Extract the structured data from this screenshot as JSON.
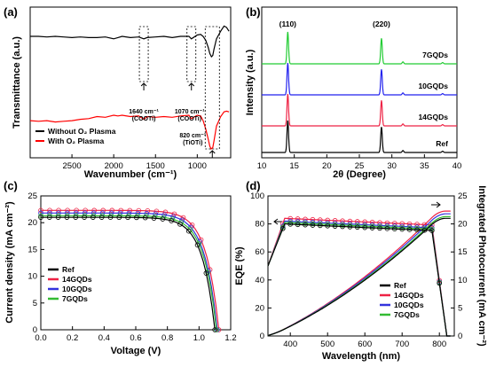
{
  "chart_data": [
    {
      "panel": "(a)",
      "type": "line",
      "xlabel": "Wavenumber (cm⁻¹)",
      "ylabel": "Transmittance (a.u.)",
      "xlim": [
        3000,
        600
      ],
      "x_ticks": [
        2500,
        2000,
        1500,
        1000
      ],
      "y_ticks": [],
      "legend_position": "bottom-left",
      "series": [
        {
          "name": "Without O₂ Plasma",
          "color": "#000000",
          "points": [
            [
              3000,
              0.82
            ],
            [
              2900,
              0.82
            ],
            [
              2800,
              0.81
            ],
            [
              2700,
              0.82
            ],
            [
              2600,
              0.81
            ],
            [
              2500,
              0.8
            ],
            [
              2400,
              0.81
            ],
            [
              2300,
              0.8
            ],
            [
              2200,
              0.8
            ],
            [
              2100,
              0.81
            ],
            [
              2000,
              0.78
            ],
            [
              1950,
              0.8
            ],
            [
              1900,
              0.82
            ],
            [
              1800,
              0.8
            ],
            [
              1700,
              0.81
            ],
            [
              1640,
              0.78
            ],
            [
              1600,
              0.8
            ],
            [
              1500,
              0.81
            ],
            [
              1400,
              0.82
            ],
            [
              1300,
              0.8
            ],
            [
              1200,
              0.82
            ],
            [
              1100,
              0.82
            ],
            [
              1070,
              0.78
            ],
            [
              1000,
              0.84
            ],
            [
              960,
              0.85
            ],
            [
              930,
              0.82
            ],
            [
              900,
              0.76
            ],
            [
              870,
              0.65
            ],
            [
              850,
              0.55
            ],
            [
              830,
              0.5
            ],
            [
              815,
              0.52
            ],
            [
              800,
              0.62
            ],
            [
              770,
              0.78
            ],
            [
              720,
              0.9
            ],
            [
              680,
              0.98
            ],
            [
              650,
              0.96
            ],
            [
              620,
              0.9
            ]
          ]
        },
        {
          "name": "With O₂ Plasma",
          "color": "#ff0000",
          "points": [
            [
              3000,
              0.42
            ],
            [
              2900,
              0.41
            ],
            [
              2800,
              0.42
            ],
            [
              2700,
              0.4
            ],
            [
              2600,
              0.41
            ],
            [
              2500,
              0.42
            ],
            [
              2400,
              0.44
            ],
            [
              2300,
              0.45
            ],
            [
              2200,
              0.48
            ],
            [
              2100,
              0.47
            ],
            [
              2000,
              0.5
            ],
            [
              1950,
              0.49
            ],
            [
              1900,
              0.5
            ],
            [
              1800,
              0.48
            ],
            [
              1700,
              0.49
            ],
            [
              1640,
              0.44
            ],
            [
              1600,
              0.48
            ],
            [
              1500,
              0.47
            ],
            [
              1400,
              0.48
            ],
            [
              1300,
              0.47
            ],
            [
              1200,
              0.49
            ],
            [
              1100,
              0.5
            ],
            [
              1070,
              0.45
            ],
            [
              1000,
              0.5
            ],
            [
              960,
              0.49
            ],
            [
              930,
              0.42
            ],
            [
              900,
              0.3
            ],
            [
              870,
              0.15
            ],
            [
              850,
              0.04
            ],
            [
              835,
              0.0
            ],
            [
              815,
              0.02
            ],
            [
              800,
              0.12
            ],
            [
              770,
              0.34
            ],
            [
              720,
              0.48
            ],
            [
              680,
              0.55
            ],
            [
              650,
              0.56
            ],
            [
              620,
              0.55
            ]
          ]
        }
      ],
      "annotations": [
        {
          "text": "1640 cm⁻¹",
          "sub": "(COOTi)",
          "x": 1640
        },
        {
          "text": "1070 cm⁻¹",
          "sub": "(COOTi)",
          "x": 1070
        },
        {
          "text": "820 cm⁻¹",
          "sub": "(TiOTi)",
          "x": 820
        }
      ]
    },
    {
      "panel": "(b)",
      "type": "line",
      "xlabel": "2θ (Degree)",
      "ylabel": "Intensity (a.u.)",
      "xlim": [
        10,
        40
      ],
      "x_ticks": [
        10,
        15,
        20,
        25,
        30,
        35,
        40
      ],
      "peak_labels": [
        {
          "text": "(110)",
          "x": 14
        },
        {
          "text": "(220)",
          "x": 28.4
        }
      ],
      "series": [
        {
          "name": "7GQDs",
          "color": "#22cc33",
          "peaks": [
            [
              14,
              1.0
            ],
            [
              28.4,
              0.8
            ],
            [
              31.7,
              0.06
            ],
            [
              37.8,
              0.04
            ]
          ]
        },
        {
          "name": "10GQDs",
          "color": "#2222ee",
          "peaks": [
            [
              14,
              1.0
            ],
            [
              28.4,
              0.8
            ],
            [
              31.7,
              0.06
            ],
            [
              37.8,
              0.04
            ]
          ]
        },
        {
          "name": "14GQDs",
          "color": "#ee2244",
          "peaks": [
            [
              14,
              1.0
            ],
            [
              28.4,
              0.8
            ],
            [
              31.7,
              0.06
            ],
            [
              37.8,
              0.04
            ]
          ]
        },
        {
          "name": "Ref",
          "color": "#000000",
          "peaks": [
            [
              14,
              1.0
            ],
            [
              28.4,
              0.8
            ],
            [
              31.7,
              0.06
            ],
            [
              37.8,
              0.04
            ]
          ]
        }
      ]
    },
    {
      "panel": "(c)",
      "type": "line",
      "xlabel": "Voltage (V)",
      "ylabel": "Current density (mA cm⁻²)",
      "xlim": [
        0.0,
        1.2
      ],
      "ylim": [
        0,
        25
      ],
      "x_ticks": [
        0.0,
        0.2,
        0.4,
        0.6,
        0.8,
        1.0,
        1.2
      ],
      "y_ticks": [
        0,
        5,
        10,
        15,
        20,
        25
      ],
      "legend_position": "bottom-left",
      "series": [
        {
          "name": "Ref",
          "color": "#000000",
          "jsc": 21.0,
          "voc": 1.1
        },
        {
          "name": "14GQDs",
          "color": "#ee2244",
          "jsc": 22.3,
          "voc": 1.125
        },
        {
          "name": "10GQDs",
          "color": "#3333dd",
          "jsc": 21.8,
          "voc": 1.115
        },
        {
          "name": "7GQDs",
          "color": "#33bb33",
          "jsc": 21.3,
          "voc": 1.11
        }
      ]
    },
    {
      "panel": "(d)",
      "type": "line",
      "xlabel": "Wavelength (nm)",
      "ylabel": "EQE (%)",
      "ylabel_right": "Integrated Photocurrent (mA cm⁻²)",
      "xlim": [
        340,
        840
      ],
      "ylim": [
        0,
        100
      ],
      "ylim_right": [
        0,
        25
      ],
      "x_ticks": [
        400,
        500,
        600,
        700,
        800
      ],
      "y_ticks": [
        0,
        20,
        40,
        60,
        80,
        100
      ],
      "y_ticks_right": [
        0,
        5,
        10,
        15,
        20,
        25
      ],
      "legend_position": "bottom-right",
      "series": [
        {
          "name": "Ref",
          "color": "#000000",
          "eqe_plateau": 80,
          "jint_end": 21.0
        },
        {
          "name": "14GQDs",
          "color": "#ee2244",
          "eqe_plateau": 84,
          "jint_end": 22.3
        },
        {
          "name": "10GQDs",
          "color": "#3333dd",
          "eqe_plateau": 82,
          "jint_end": 21.8
        },
        {
          "name": "7GQDs",
          "color": "#33bb33",
          "eqe_plateau": 81,
          "jint_end": 21.3
        }
      ]
    }
  ]
}
